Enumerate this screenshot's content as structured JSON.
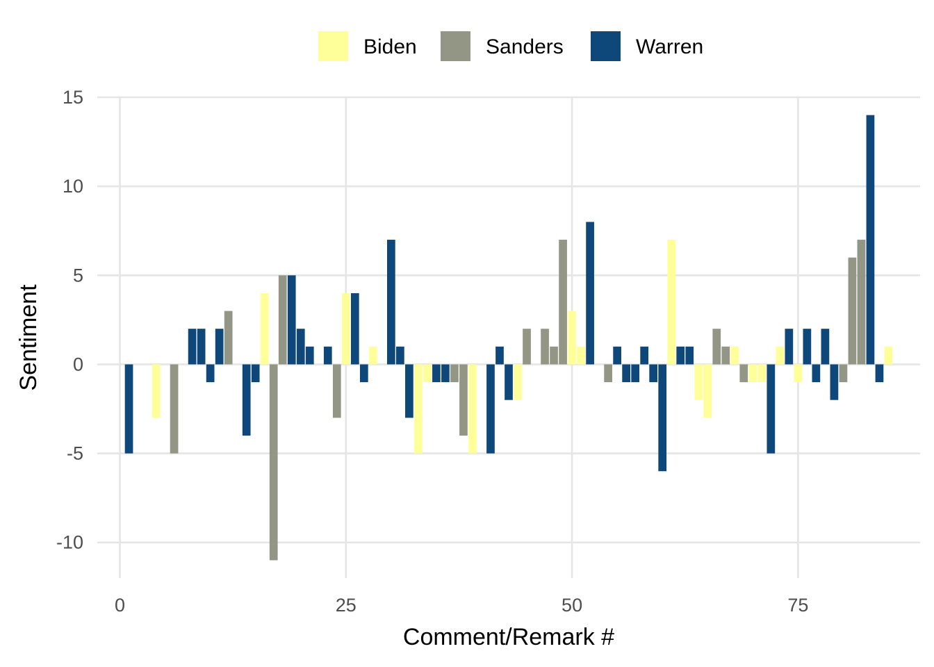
{
  "chart_data": {
    "type": "bar",
    "title": "",
    "xlabel": "Comment/Remark #",
    "ylabel": "Sentiment",
    "xlim": [
      -2.5,
      88.5
    ],
    "ylim": [
      -12,
      15
    ],
    "x_ticks": [
      0,
      25,
      50,
      75
    ],
    "y_ticks": [
      -10,
      -5,
      0,
      5,
      10,
      15
    ],
    "grid": true,
    "legend_position": "top",
    "colors": {
      "Biden": "#FFFF99",
      "Sanders": "#939585",
      "Warren": "#0E477A"
    },
    "series": [
      {
        "name": "Biden",
        "color": "#FFFF99",
        "points": [
          [
            4,
            -3
          ],
          [
            16,
            4
          ],
          [
            25,
            4
          ],
          [
            28,
            1
          ],
          [
            33,
            -5
          ],
          [
            34,
            -1
          ],
          [
            39,
            -5
          ],
          [
            44,
            -2
          ],
          [
            50,
            3
          ],
          [
            51,
            1
          ],
          [
            61,
            7
          ],
          [
            64,
            -2
          ],
          [
            65,
            -3
          ],
          [
            68,
            1
          ],
          [
            70,
            -1
          ],
          [
            71,
            -1
          ],
          [
            73,
            1
          ],
          [
            75,
            -1
          ],
          [
            85,
            1
          ]
        ]
      },
      {
        "name": "Sanders",
        "color": "#939585",
        "points": [
          [
            6,
            -5
          ],
          [
            12,
            3
          ],
          [
            17,
            -11
          ],
          [
            18,
            5
          ],
          [
            24,
            -3
          ],
          [
            37,
            -1
          ],
          [
            38,
            -4
          ],
          [
            45,
            2
          ],
          [
            47,
            2
          ],
          [
            48,
            1
          ],
          [
            49,
            7
          ],
          [
            54,
            -1
          ],
          [
            66,
            2
          ],
          [
            67,
            1
          ],
          [
            69,
            -1
          ],
          [
            80,
            -1
          ],
          [
            81,
            6
          ],
          [
            82,
            7
          ]
        ]
      },
      {
        "name": "Warren",
        "color": "#0E477A",
        "points": [
          [
            1,
            -5
          ],
          [
            8,
            2
          ],
          [
            9,
            2
          ],
          [
            10,
            -1
          ],
          [
            11,
            2
          ],
          [
            14,
            -4
          ],
          [
            15,
            -1
          ],
          [
            19,
            5
          ],
          [
            20,
            2
          ],
          [
            21,
            1
          ],
          [
            23,
            1
          ],
          [
            26,
            4
          ],
          [
            27,
            -1
          ],
          [
            30,
            7
          ],
          [
            31,
            1
          ],
          [
            32,
            -3
          ],
          [
            35,
            -1
          ],
          [
            36,
            -1
          ],
          [
            41,
            -5
          ],
          [
            42,
            1
          ],
          [
            43,
            -2
          ],
          [
            52,
            8
          ],
          [
            55,
            1
          ],
          [
            56,
            -1
          ],
          [
            57,
            -1
          ],
          [
            58,
            1
          ],
          [
            59,
            -1
          ],
          [
            60,
            -6
          ],
          [
            62,
            1
          ],
          [
            63,
            1
          ],
          [
            72,
            -5
          ],
          [
            74,
            2
          ],
          [
            76,
            2
          ],
          [
            77,
            -1
          ],
          [
            78,
            2
          ],
          [
            79,
            -2
          ],
          [
            83,
            14
          ],
          [
            84,
            -1
          ]
        ]
      }
    ]
  }
}
